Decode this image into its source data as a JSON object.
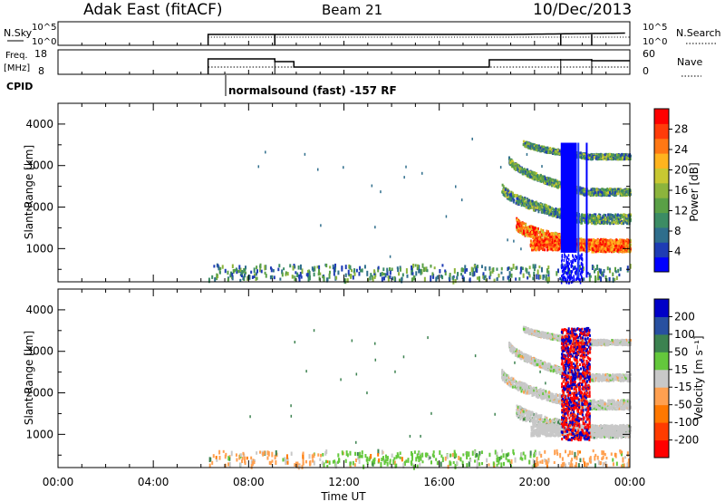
{
  "header": {
    "station": "Adak East (fitACF)",
    "beam": "Beam 21",
    "date": "10/Dec/2013"
  },
  "top_panels": {
    "nsky": {
      "label": "N.Sky",
      "yticks": [
        "10^5",
        "10^0"
      ],
      "right_label": "N.Search",
      "right_yticks": [
        "10^5",
        "10^0"
      ]
    },
    "freq": {
      "label_line1": "Freq.",
      "label_line2": "[MHz]",
      "yticks": [
        "18",
        "8"
      ],
      "right_label": "Nave",
      "right_yticks": [
        "60",
        "0"
      ]
    },
    "cpid": {
      "label": "CPID",
      "program_text": "normalsound (fast) -157 RF"
    }
  },
  "chart_data": [
    {
      "type": "heatmap",
      "title": "",
      "xlabel": "",
      "ylabel": "Slant Range [km]",
      "yticks": [
        1000,
        2000,
        3000,
        4000
      ],
      "ylim": [
        200,
        4500
      ],
      "xlim_hours": [
        0,
        24
      ],
      "colorbar": {
        "label": "Power [dB]",
        "ticks": [
          "4",
          "8",
          "12",
          "16",
          "20",
          "24",
          "28"
        ],
        "colors": [
          "#0000ff",
          "#1e3cb4",
          "#2f6e8c",
          "#3c8c64",
          "#5aa046",
          "#8cb43c",
          "#c8c832",
          "#ffb41e",
          "#ff7814",
          "#ff3c0a",
          "#ff0000"
        ]
      },
      "features": [
        {
          "name": "ground scatter band",
          "x_hours": [
            19.5,
            24
          ],
          "y_km": [
            900,
            1300
          ],
          "power_db": 26
        },
        {
          "name": "echo arc 2",
          "x_hours": [
            18.5,
            24
          ],
          "y_km": [
            1600,
            2400
          ],
          "power_db": 14
        },
        {
          "name": "echo arc 3",
          "x_hours": [
            18.5,
            24
          ],
          "y_km": [
            2400,
            3100
          ],
          "power_db": 10
        },
        {
          "name": "near range scatter",
          "x_hours": [
            6.3,
            24
          ],
          "y_km": [
            200,
            500
          ],
          "power_db": 8
        }
      ]
    },
    {
      "type": "heatmap",
      "title": "",
      "xlabel": "Time UT",
      "ylabel": "Slant Range [km]",
      "xticks": [
        "00:00",
        "04:00",
        "08:00",
        "12:00",
        "16:00",
        "20:00",
        "00:00"
      ],
      "yticks": [
        1000,
        2000,
        3000,
        4000
      ],
      "ylim": [
        200,
        4500
      ],
      "xlim_hours": [
        0,
        24
      ],
      "colorbar": {
        "label": "Velocity [m s⁻¹]",
        "ticks": [
          "200",
          "100",
          "50",
          "15",
          "-15",
          "-50",
          "-100",
          "-200"
        ],
        "colors": [
          "#0000c8",
          "#2850a0",
          "#3c8250",
          "#64c83c",
          "#c8c8c8",
          "#ffa050",
          "#ff7800",
          "#ff3c00",
          "#ff0000"
        ]
      },
      "features": [
        {
          "name": "ground scatter band",
          "x_hours": [
            19.5,
            24
          ],
          "y_km": [
            900,
            1300
          ],
          "velocity_ms": 0
        },
        {
          "name": "echo arc 2",
          "x_hours": [
            18.5,
            24
          ],
          "y_km": [
            1600,
            2400
          ],
          "velocity_ms": 0
        },
        {
          "name": "near range scatter",
          "x_hours": [
            6.3,
            24
          ],
          "y_km": [
            200,
            500
          ],
          "velocity_ms": 20
        }
      ]
    }
  ]
}
